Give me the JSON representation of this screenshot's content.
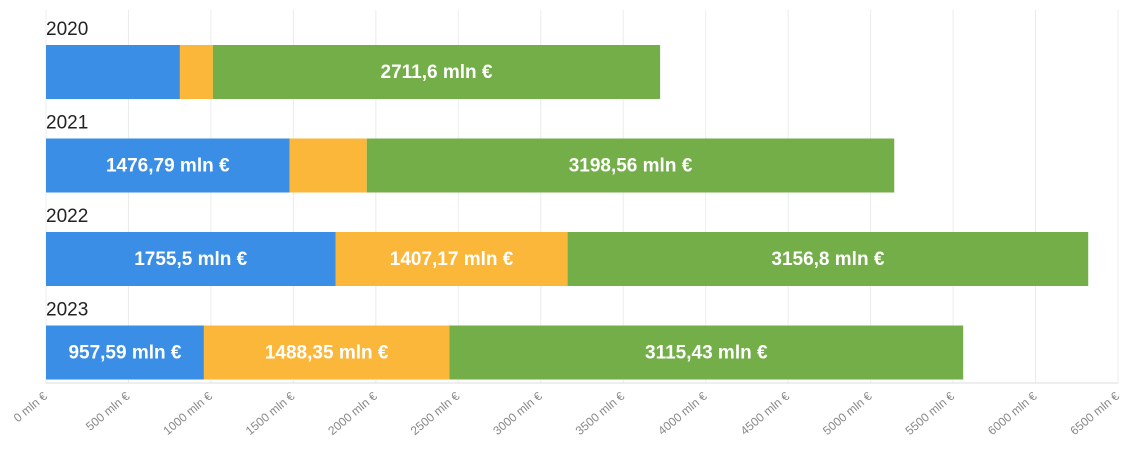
{
  "chart_data": {
    "type": "stacked-bar-horizontal",
    "categories": [
      "2020",
      "2021",
      "2022",
      "2023"
    ],
    "series": [
      {
        "color": "#3a8ee6",
        "values": [
          812,
          1476.79,
          1755.5,
          957.59
        ],
        "value_labels": [
          null,
          "1476,79 mln €",
          "1755,5 mln €",
          "957,59 mln €"
        ]
      },
      {
        "color": "#fbb73a",
        "values": [
          200,
          468,
          1407.17,
          1488.35
        ],
        "value_labels": [
          null,
          null,
          "1407,17 mln €",
          "1488,35 mln €"
        ]
      },
      {
        "color": "#73ae48",
        "values": [
          2711.6,
          3198.56,
          3156.8,
          3115.43
        ],
        "value_labels": [
          "2711,6 mln €",
          "3198,56 mln €",
          "3156,8 mln €",
          "3115,43 mln €"
        ]
      }
    ],
    "xlim": [
      0,
      6500
    ],
    "xticks": [
      {
        "value": 0,
        "label": "0 mln €"
      },
      {
        "value": 500,
        "label": "500 mln €"
      },
      {
        "value": 1000,
        "label": "1000 mln €"
      },
      {
        "value": 1500,
        "label": "1500 mln €"
      },
      {
        "value": 2000,
        "label": "2000 mln €"
      },
      {
        "value": 2500,
        "label": "2500 mln €"
      },
      {
        "value": 3000,
        "label": "3000 mln €"
      },
      {
        "value": 3500,
        "label": "3500 mln €"
      },
      {
        "value": 4000,
        "label": "4000 mln €"
      },
      {
        "value": 4500,
        "label": "4500 mln €"
      },
      {
        "value": 5000,
        "label": "5000 mln €"
      },
      {
        "value": 5500,
        "label": "5500 mln €"
      },
      {
        "value": 6000,
        "label": "6000 mln €"
      },
      {
        "value": 6500,
        "label": "6500 mln €"
      }
    ],
    "grid": true
  }
}
